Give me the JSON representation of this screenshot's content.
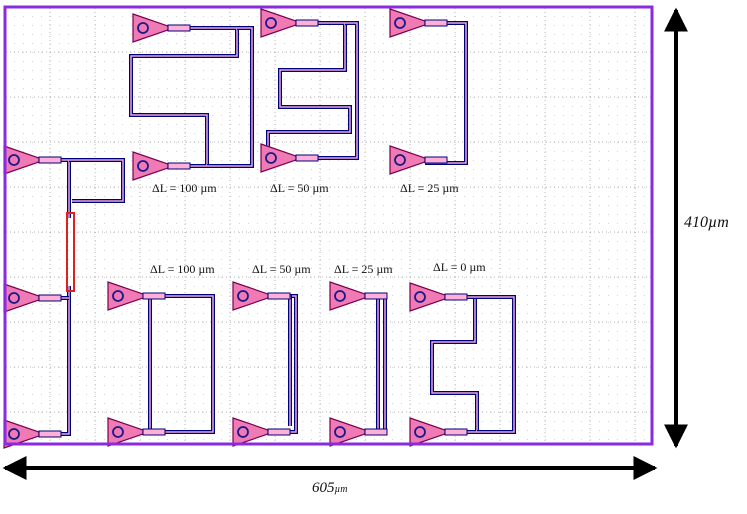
{
  "dimensions": {
    "height_label": "410µm",
    "width_label": "605µm",
    "width_unit": "µm"
  },
  "labels": [
    {
      "key": "top_1",
      "text": "ΔL = 100 µm"
    },
    {
      "key": "top_2",
      "text": "ΔL = 50 µm"
    },
    {
      "key": "top_3",
      "text": "ΔL = 25 µm"
    },
    {
      "key": "bot_1",
      "text": "ΔL = 100 µm"
    },
    {
      "key": "bot_2",
      "text": "ΔL = 50 µm"
    },
    {
      "key": "bot_3",
      "text": "ΔL = 25 µm"
    },
    {
      "key": "bot_4",
      "text": "ΔL = 0 µm"
    }
  ],
  "colors": {
    "frame": "#8a2be2",
    "waveguide_outer": "#00007a",
    "waveguide_inner": "#e8a8d8",
    "coupler_fill": "#f07ab4",
    "coupler_stroke": "#7a0050",
    "taper_fill": "#ffb0d8",
    "ring_stroke": "#1a1a8a",
    "splitter": "#e02020",
    "grid_dot": "#9a9a9a",
    "arrow": "#000000"
  }
}
